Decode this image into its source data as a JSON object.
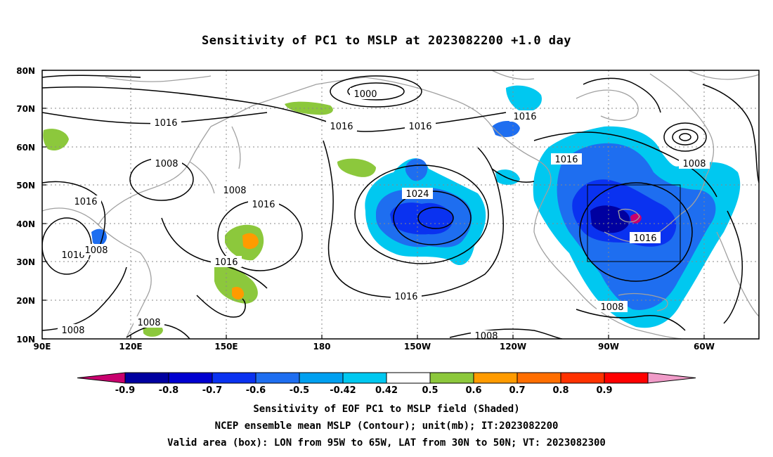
{
  "title": "Sensitivity of PC1 to MSLP at 2023082200 +1.0 day",
  "lat_labels": [
    "80N",
    "70N",
    "60N",
    "50N",
    "40N",
    "30N",
    "20N",
    "10N"
  ],
  "lon_labels": [
    "90E",
    "120E",
    "150E",
    "180",
    "150W",
    "120W",
    "90W",
    "60W"
  ],
  "contour_labels": {
    "c1000": "1000",
    "c1008a": "1008",
    "c1008b": "1008",
    "c1008c": "1008",
    "c1008d": "1008",
    "c1008e": "1008",
    "c1008f": "1008",
    "c1008g": "1008",
    "c1008h": "1008",
    "c1008i": "1008",
    "c1016a": "1016",
    "c1016b": "1016",
    "c1016c": "1016",
    "c1016d": "1016",
    "c1016e": "1016",
    "c1016f": "1016",
    "c1016g": "1016",
    "c1016h": "1016",
    "c1016i": "1016",
    "c1016j": "1016",
    "c1024": "1024"
  },
  "colorbar": {
    "labels": [
      "-0.9",
      "-0.8",
      "-0.7",
      "-0.6",
      "-0.5",
      "-0.42",
      "0.42",
      "0.5",
      "0.6",
      "0.7",
      "0.8",
      "0.9"
    ],
    "colors": [
      "#c8006e",
      "#0000a0",
      "#0000d0",
      "#0a32f0",
      "#1e6ef0",
      "#00a0f0",
      "#00c8f0",
      "#ffffff",
      "#8cc83c",
      "#ff9b00",
      "#ff6e00",
      "#ff3200",
      "#ff0000",
      "#f09bc8"
    ]
  },
  "captions": {
    "line1": "Sensitivity of EOF PC1 to MSLP field (Shaded)",
    "line2": "NCEP ensemble mean MSLP (Contour); unit(mb); IT:2023082200",
    "line3": "Valid area (box): LON from 95W to 65W, LAT from 30N to 50N; VT: 2023082300"
  },
  "colors": {
    "coastline": "#a0a0a0",
    "contour": "#000000",
    "box": "#000000"
  }
}
